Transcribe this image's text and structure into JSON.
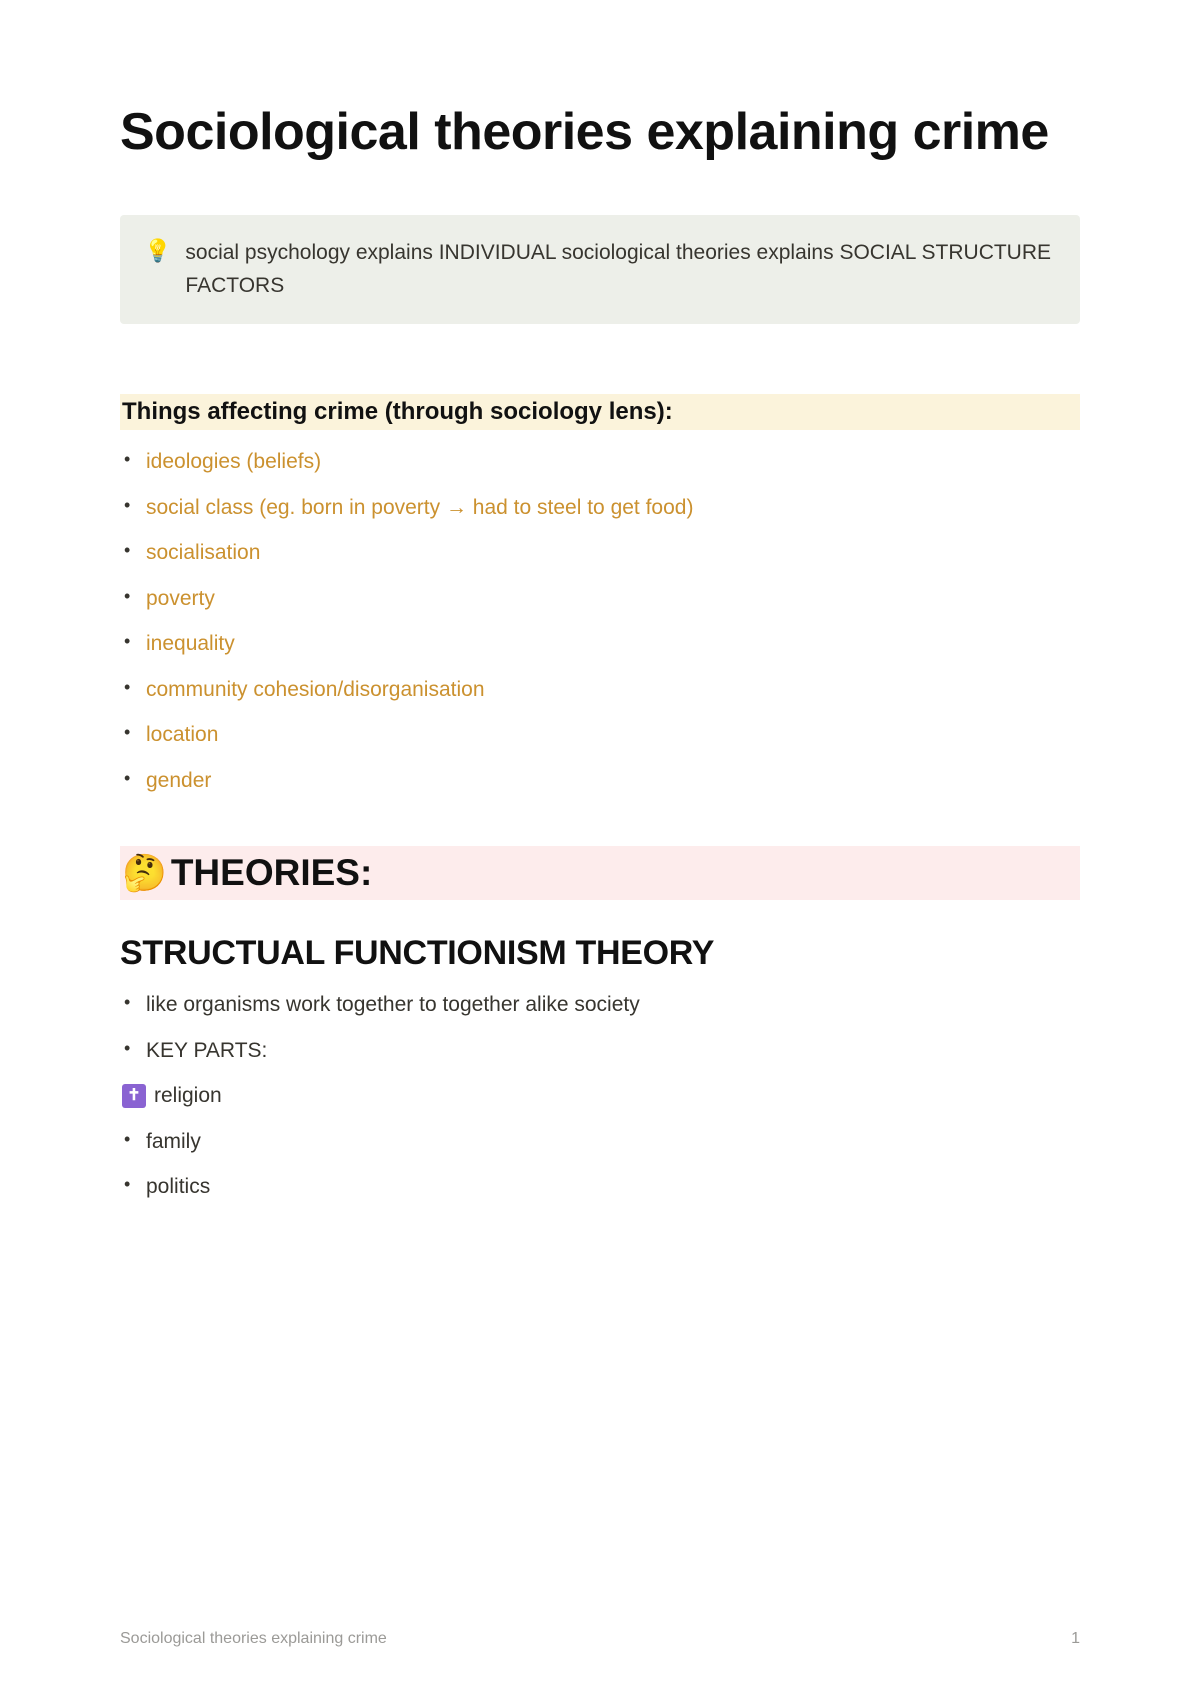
{
  "title": "Sociological theories explaining crime",
  "callout": {
    "icon": "💡",
    "text": "social psychology explains INDIVIDUAL sociological theories explains SOCIAL STRUCTURE FACTORS"
  },
  "section1": {
    "heading": "Things affecting crime (through sociology lens):",
    "items": [
      "ideologies (beliefs)",
      "social class (eg. born in poverty → had to steel to get food)",
      "socialisation",
      "poverty",
      "inequality",
      "community cohesion/disorganisation",
      "location",
      "gender"
    ]
  },
  "theories": {
    "icon": "🤔",
    "heading": "THEORIES:"
  },
  "subtheory": {
    "heading": "STRUCTUAL FUNCTIONISM THEORY",
    "items": [
      "like organisms work together to together alike society",
      "KEY PARTS:"
    ],
    "religion_label": "religion",
    "cross_glyph": "✝",
    "sub_items": [
      "family",
      "politics"
    ]
  },
  "footer": {
    "title": "Sociological theories explaining crime",
    "page": "1"
  },
  "colors": {
    "callout_bg": "#edefe9",
    "highlight_yellow": "#fbf3db",
    "highlight_red": "#fdecec",
    "list_amber": "#cb912f",
    "cross_bg": "#8a63d2"
  }
}
